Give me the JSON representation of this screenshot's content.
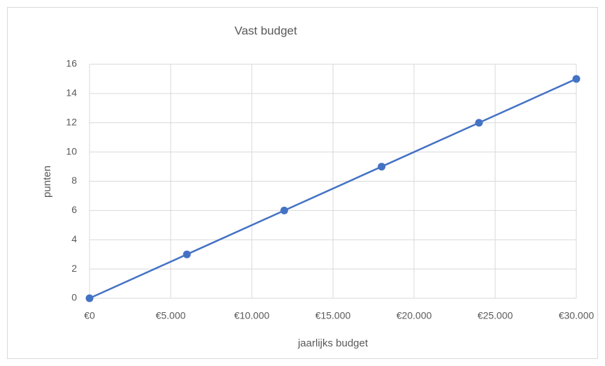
{
  "chart_data": {
    "type": "line",
    "title": "Vast budget",
    "xlabel": "jaarlijks budget",
    "ylabel": "punten",
    "x": [
      0,
      6000,
      12000,
      18000,
      24000,
      30000
    ],
    "values": [
      0,
      3,
      6,
      9,
      12,
      15
    ],
    "color": "#4472c4",
    "xlim": [
      0,
      30000
    ],
    "xticks": [
      {
        "value": 0,
        "label": "€0"
      },
      {
        "value": 5000,
        "label": "€5.000"
      },
      {
        "value": 10000,
        "label": "€10.000"
      },
      {
        "value": 15000,
        "label": "€15.000"
      },
      {
        "value": 20000,
        "label": "€20.000"
      },
      {
        "value": 25000,
        "label": "€25.000"
      },
      {
        "value": 30000,
        "label": "€30.000"
      }
    ],
    "ylim": [
      0,
      16
    ],
    "yticks": [
      0,
      2,
      4,
      6,
      8,
      10,
      12,
      14,
      16
    ],
    "grid": true
  }
}
